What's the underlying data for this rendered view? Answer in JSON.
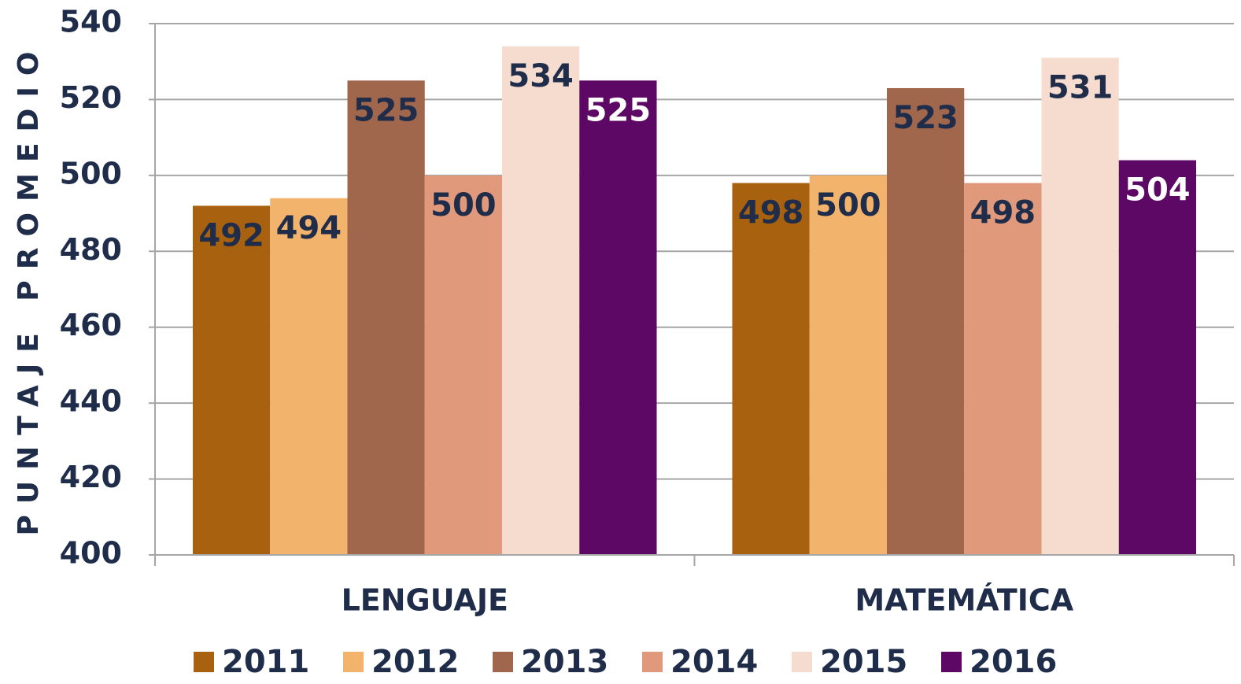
{
  "chart_data": {
    "type": "bar",
    "y_label": "PUNTAJE PROMEDIO",
    "categories": [
      "LENGUAJE",
      "MATEMÁTICA"
    ],
    "series": [
      {
        "name": "2011",
        "color": "#a8610e",
        "values": [
          492,
          498
        ]
      },
      {
        "name": "2012",
        "color": "#f2b46c",
        "values": [
          494,
          500
        ]
      },
      {
        "name": "2013",
        "color": "#a0674d",
        "values": [
          525,
          523
        ]
      },
      {
        "name": "2014",
        "color": "#e0997a",
        "values": [
          500,
          498
        ]
      },
      {
        "name": "2015",
        "color": "#f5dccf",
        "values": [
          534,
          531
        ]
      },
      {
        "name": "2016",
        "color": "#5e0866",
        "values": [
          525,
          504
        ]
      }
    ],
    "ylim": [
      400,
      540
    ],
    "yticks": [
      400,
      420,
      440,
      460,
      480,
      500,
      520,
      540
    ],
    "grid": true
  }
}
